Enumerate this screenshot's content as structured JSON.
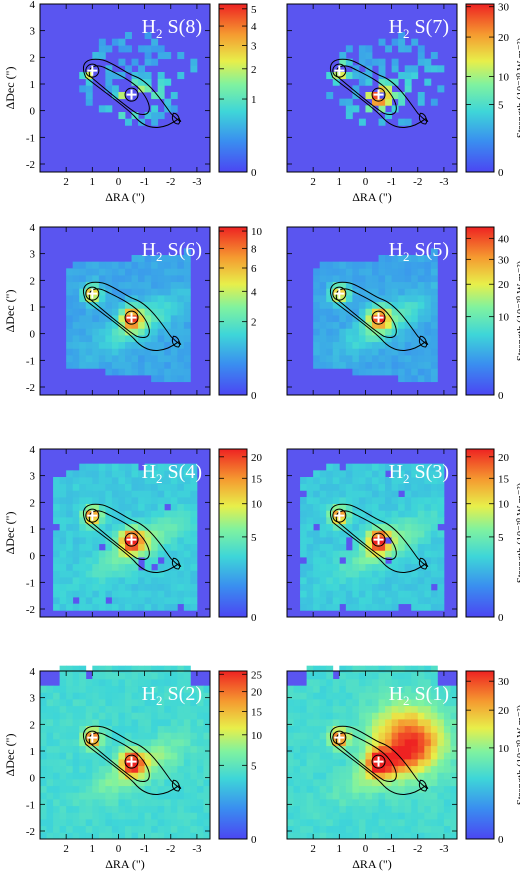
{
  "chart_data": [
    {
      "type": "heatmap",
      "title": "H",
      "title_sub": "2",
      "title_tail": " S(8)",
      "xlabel": "ΔRA (\")",
      "ylabel": "ΔDec (\")",
      "xlim": [
        3,
        -3.5
      ],
      "ylim": [
        -2.3,
        4
      ],
      "xticks": [
        "2",
        "1",
        "0",
        "-1",
        "-2",
        "-3"
      ],
      "yticks": [
        "4",
        "3",
        "2",
        "1",
        "0",
        "-1",
        "-2"
      ],
      "colorbar_ticks": [
        "5",
        "4",
        "3",
        "2",
        "1",
        "0"
      ],
      "colorbar_max": 5.3,
      "colorbar_label": "",
      "peak_value": 5,
      "emission_extent": "patchy"
    },
    {
      "type": "heatmap",
      "title": "H",
      "title_sub": "2",
      "title_tail": " S(7)",
      "xlabel": "ΔRA (\")",
      "ylabel": "",
      "xlim": [
        3,
        -3.5
      ],
      "ylim": [
        -2.3,
        4
      ],
      "xticks": [
        "2",
        "1",
        "0",
        "-1",
        "-2",
        "-3"
      ],
      "yticks": [],
      "colorbar_ticks": [
        "30",
        "20",
        "10",
        "5",
        "0"
      ],
      "colorbar_max": 31,
      "colorbar_label": "Strength (10⁻²⁰ W m⁻²)",
      "peak_value": 30,
      "emission_extent": "patchy"
    },
    {
      "type": "heatmap",
      "title": "H",
      "title_sub": "2",
      "title_tail": " S(6)",
      "xlabel": "",
      "ylabel": "ΔDec (\")",
      "xlim": [
        3,
        -3.5
      ],
      "ylim": [
        -2.3,
        4
      ],
      "xticks": [],
      "yticks": [
        "4",
        "3",
        "2",
        "1",
        "0",
        "-1",
        "-2"
      ],
      "colorbar_ticks": [
        "10",
        "8",
        "6",
        "4",
        "2",
        "0"
      ],
      "colorbar_max": 10.5,
      "colorbar_label": "",
      "peak_value": 10,
      "emission_extent": "box"
    },
    {
      "type": "heatmap",
      "title": "H",
      "title_sub": "2",
      "title_tail": " S(5)",
      "xlabel": "",
      "ylabel": "",
      "xlim": [
        3,
        -3.5
      ],
      "ylim": [
        -2.3,
        4
      ],
      "xticks": [],
      "yticks": [],
      "colorbar_ticks": [
        "40",
        "30",
        "20",
        "10",
        "0"
      ],
      "colorbar_max": 46,
      "colorbar_label": "Strength (10⁻²⁰ W m⁻²)",
      "peak_value": 40,
      "emission_extent": "box"
    },
    {
      "type": "heatmap",
      "title": "H",
      "title_sub": "2",
      "title_tail": " S(4)",
      "xlabel": "",
      "ylabel": "ΔDec (\")",
      "xlim": [
        3,
        -3.5
      ],
      "ylim": [
        -2.3,
        4
      ],
      "xticks": [],
      "yticks": [
        "4",
        "3",
        "2",
        "1",
        "0",
        "-1",
        "-2"
      ],
      "colorbar_ticks": [
        "20",
        "15",
        "10",
        "5",
        "0"
      ],
      "colorbar_max": 22,
      "colorbar_label": "",
      "peak_value": 20,
      "emission_extent": "wide"
    },
    {
      "type": "heatmap",
      "title": "H",
      "title_sub": "2",
      "title_tail": " S(3)",
      "xlabel": "",
      "ylabel": "",
      "xlim": [
        3,
        -3.5
      ],
      "ylim": [
        -2.3,
        4
      ],
      "xticks": [],
      "yticks": [],
      "colorbar_ticks": [
        "20",
        "15",
        "10",
        "5",
        "0"
      ],
      "colorbar_max": 22,
      "colorbar_label": "Strength (10⁻²⁰ W m⁻²)",
      "peak_value": 20,
      "emission_extent": "wide"
    },
    {
      "type": "heatmap",
      "title": "H",
      "title_sub": "2",
      "title_tail": " S(2)",
      "xlabel": "ΔRA (\")",
      "ylabel": "ΔDec (\")",
      "xlim": [
        3,
        -3.5
      ],
      "ylim": [
        -2.3,
        4
      ],
      "xticks": [
        "2",
        "1",
        "0",
        "-1",
        "-2",
        "-3"
      ],
      "yticks": [
        "4",
        "3",
        "2",
        "1",
        "0",
        "-1",
        "-2"
      ],
      "colorbar_ticks": [
        "25",
        "20",
        "15",
        "10",
        "5",
        "0"
      ],
      "colorbar_max": 26,
      "colorbar_label": "",
      "peak_value": 25,
      "emission_extent": "full"
    },
    {
      "type": "heatmap",
      "title": "H",
      "title_sub": "2",
      "title_tail": " S(1)",
      "xlabel": "ΔRA (\")",
      "ylabel": "",
      "xlim": [
        3,
        -3.5
      ],
      "ylim": [
        -2.3,
        4
      ],
      "xticks": [
        "2",
        "1",
        "0",
        "-1",
        "-2",
        "-3"
      ],
      "yticks": [],
      "colorbar_ticks": [
        "30",
        "20",
        "10",
        "0"
      ],
      "colorbar_max": 34,
      "colorbar_label": "Strength (10⁻²⁰ W m⁻²)",
      "peak_value": 30,
      "emission_extent": "full"
    }
  ],
  "markers": [
    {
      "name": "source-north",
      "x": 1.0,
      "y": 1.5
    },
    {
      "name": "source-south",
      "x": -0.5,
      "y": 0.6
    }
  ],
  "colors": {
    "background_low": "#5a55f0",
    "contour": "#000000",
    "marker": "#ffffff"
  }
}
